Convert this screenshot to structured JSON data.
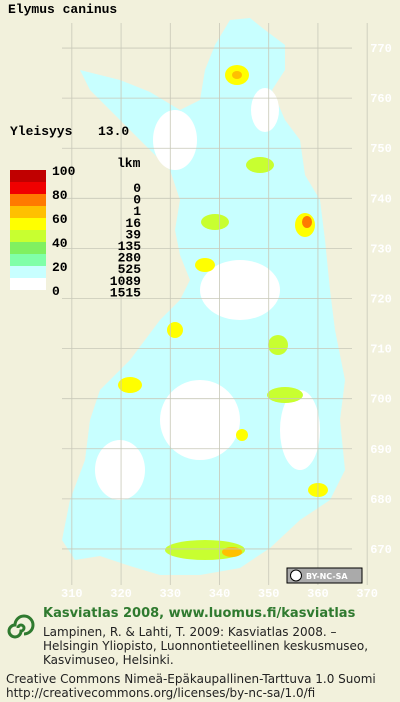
{
  "title": "Elymus caninus",
  "frequency": {
    "label": "Yleisyys",
    "value": "13.0"
  },
  "legend": {
    "scale_labels": [
      100,
      80,
      60,
      40,
      20,
      0
    ],
    "count_header": "lkm",
    "counts": [
      0,
      0,
      1,
      16,
      39,
      135,
      280,
      525,
      1089,
      1515
    ],
    "colors": [
      "#c00000",
      "#f00000",
      "#ff7a00",
      "#ffc000",
      "#ffff00",
      "#c8ff30",
      "#80f060",
      "#80ffa8",
      "#c8ffff",
      "#ffffff"
    ]
  },
  "map": {
    "xlim": [
      308,
      372
    ],
    "ylim": [
      665,
      775
    ],
    "xticks": [
      310,
      320,
      330,
      340,
      350,
      360,
      370
    ],
    "yticks": [
      770,
      760,
      750,
      740,
      730,
      720,
      710,
      700,
      690,
      680,
      670
    ],
    "license_badge": "BY-NC-SA"
  },
  "footer": {
    "headline": "Kasviatlas 2008, www.luomus.fi/kasviatlas",
    "citation": [
      "Lampinen, R. & Lahti, T. 2009: Kasviatlas 2008. –",
      "Helsingin Yliopisto, Luonnontieteellinen keskusmuseo,",
      "Kasvimuseo, Helsinki."
    ],
    "license": [
      "Creative Commons Nimeä-Epäkaupallinen-Tarttuva 1.0 Suomi",
      "http://creativecommons.org/licenses/by-nc-sa/1.0/fi"
    ]
  }
}
